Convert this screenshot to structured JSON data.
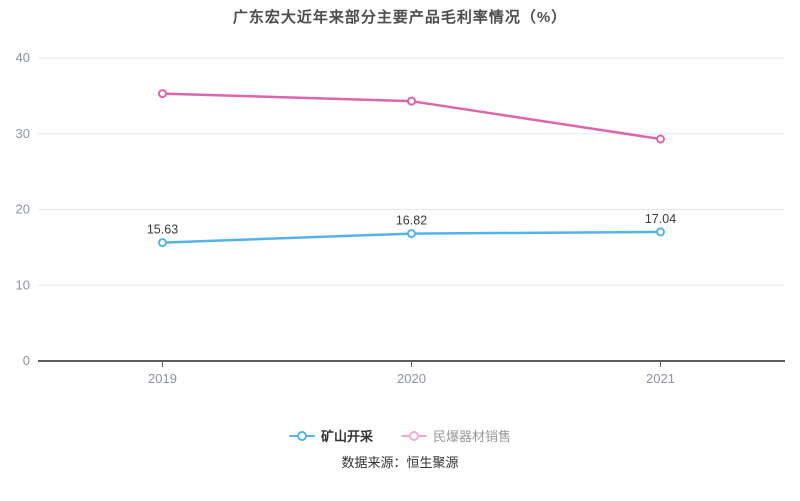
{
  "title": "广东宏大近年来部分主要产品毛利率情况（%）",
  "chart_data": {
    "type": "line",
    "title": "广东宏大近年来部分主要产品毛利率情况（%）",
    "categories": [
      "2019",
      "2020",
      "2021"
    ],
    "series": [
      {
        "name": "矿山开采",
        "color": "#53b4e9",
        "values": [
          15.63,
          16.82,
          17.04
        ],
        "point_labels": [
          "15.63",
          "16.82",
          "17.04"
        ],
        "show_labels": true
      },
      {
        "name": "民爆器材销售",
        "color": "#dc66ab",
        "values": [
          35.3,
          34.3,
          29.3
        ],
        "point_labels": [],
        "show_labels": false
      }
    ],
    "xlabel": "",
    "ylabel": "",
    "ylim": [
      0,
      40
    ],
    "yticks": [
      0,
      10,
      20,
      30,
      40
    ],
    "grid": true,
    "legend_position": "bottom",
    "marker_style": "hollow-circle"
  },
  "legend": {
    "items": [
      {
        "label": "矿山开采",
        "marker_color": "#53b4e9",
        "state": "active"
      },
      {
        "label": "民爆器材销售",
        "marker_color": "#f2abd2",
        "state": "faded"
      }
    ]
  },
  "source": "数据来源：恒生聚源",
  "colors": {
    "series_blue": "#53b4e9",
    "series_pink": "#dc66ab",
    "legend_pink_faded": "#f2abd2",
    "gridline": "#e3e8f3",
    "axis_line": "#585d66",
    "tick_label": "#8d939e",
    "point_label": "#3a3a3a",
    "title": "#4d4d4d",
    "background": "#ffffff"
  }
}
